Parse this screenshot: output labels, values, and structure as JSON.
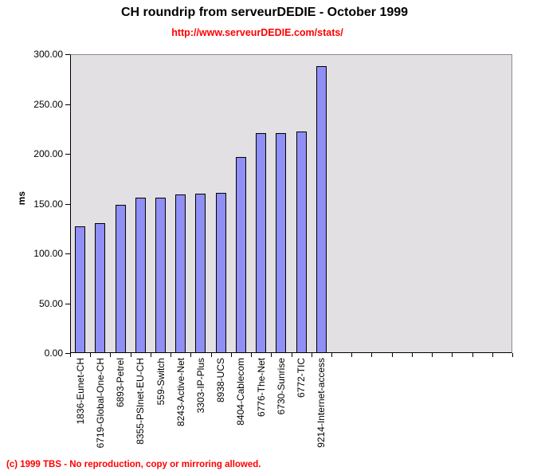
{
  "page": {
    "footer": "(c) 1999 TBS - No reproduction, copy or mirroring allowed."
  },
  "chart_data": {
    "type": "bar",
    "title": "CH roundrip from serveurDEDIE - October 1999",
    "subtitle": "http://www.serveurDEDIE.com/stats/",
    "ylabel": "ms",
    "xlabel": "",
    "ylim": [
      0,
      300
    ],
    "ytick_interval": 50,
    "ytick_labels": [
      "300.00",
      "250.00",
      "200.00",
      "150.00",
      "100.00",
      "50.00",
      "0.00"
    ],
    "grid": false,
    "legend": false,
    "total_category_slots": 22,
    "categories": [
      "1836-Eunet-CH",
      "6719-Global-One-CH",
      "6893-Petrel",
      "8355-PSInet-EU-CH",
      "559-Switch",
      "8243-Active-Net",
      "3303-IP-Plus",
      "8938-UCS",
      "8404-Cablecom",
      "6776-The-Net",
      "6730-Sunrise",
      "6772-TIC",
      "9214-Internet-access"
    ],
    "values": [
      127,
      130,
      149,
      156,
      156,
      159,
      160,
      161,
      197,
      221,
      221,
      222,
      288
    ],
    "colors": {
      "bar_fill": "#8f8ff5",
      "bar_border": "#000000",
      "plot_background": "#e3e0e3",
      "plot_border": "#8c8a8c",
      "axis": "#000000",
      "accent_red": "#ff0000",
      "title_text": "#000000"
    }
  }
}
